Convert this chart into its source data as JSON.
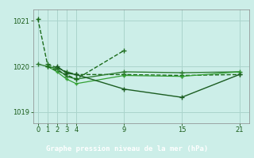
{
  "background_color": "#cceee8",
  "plot_bg_color": "#cceee8",
  "grid_color": "#aad4cc",
  "line1": {
    "x": [
      0,
      1,
      2,
      3,
      4,
      9,
      15,
      21
    ],
    "y": [
      1021.05,
      1020.05,
      1019.97,
      1019.88,
      1019.82,
      1019.82,
      1019.8,
      1019.82
    ],
    "color": "#1a6b1a",
    "linestyle": "--",
    "marker": "+",
    "linewidth": 1.0,
    "markersize": 4
  },
  "line2": {
    "x": [
      0,
      1,
      2,
      3,
      4,
      9,
      15,
      21
    ],
    "y": [
      1020.05,
      1020.0,
      1019.95,
      1019.78,
      1019.72,
      1019.88,
      1019.86,
      1019.88
    ],
    "color": "#2e7d32",
    "linestyle": "-",
    "marker": "+",
    "linewidth": 1.0,
    "markersize": 4
  },
  "line3": {
    "x": [
      1,
      2,
      3,
      4,
      9,
      15,
      21
    ],
    "y": [
      1020.0,
      1019.88,
      1019.72,
      1019.62,
      1019.8,
      1019.78,
      1019.88
    ],
    "color": "#33a033",
    "linestyle": "-",
    "marker": "+",
    "linewidth": 0.9,
    "markersize": 3
  },
  "line4_dashed": {
    "x": [
      1,
      4,
      9
    ],
    "y": [
      1020.0,
      1019.72,
      1020.35
    ],
    "color": "#1a6b1a",
    "linestyle": "--",
    "marker": "+",
    "linewidth": 1.0,
    "markersize": 5
  },
  "line5": {
    "x": [
      2,
      3,
      4,
      9,
      15,
      21
    ],
    "y": [
      1020.0,
      1019.85,
      1019.82,
      1019.5,
      1019.32,
      1019.82
    ],
    "color": "#1a5c20",
    "linestyle": "-",
    "marker": "+",
    "linewidth": 1.0,
    "markersize": 4
  },
  "yticks": [
    1019,
    1020,
    1021
  ],
  "xticks": [
    0,
    1,
    2,
    3,
    4,
    9,
    15,
    21
  ],
  "ylim": [
    1018.75,
    1021.25
  ],
  "xlim": [
    -0.5,
    22.0
  ],
  "xlabel": "Graphe pression niveau de la mer (hPa)",
  "xlabel_color": "#ffffff",
  "xlabel_bg": "#2d6b2d",
  "tick_color": "#1a5c1a",
  "spine_color": "#888888",
  "tick_fontsize": 6.0,
  "label_fontsize": 6.5
}
